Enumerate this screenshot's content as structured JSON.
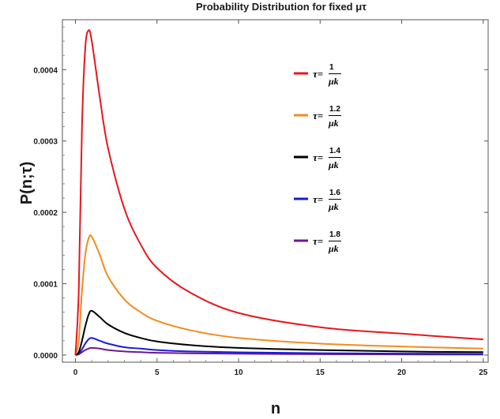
{
  "chart_data": {
    "type": "line",
    "title": "Probability Distribution for fixed μτ",
    "xlabel": "n",
    "ylabel": "P(n;τ)",
    "xlim": [
      -0.8,
      25.3
    ],
    "ylim": [
      -1e-05,
      0.00047
    ],
    "x_ticks": [
      0,
      5,
      10,
      15,
      20,
      25
    ],
    "x_tick_labels": [
      "0",
      "5",
      "10",
      "15",
      "20",
      "25"
    ],
    "y_ticks": [
      0,
      0.0001,
      0.0002,
      0.0003,
      0.0004
    ],
    "y_tick_labels": [
      "0.0000",
      "0.0001",
      "0.0002",
      "0.0003",
      "0.0004"
    ],
    "legend_position": "top-right",
    "series": [
      {
        "name": "τ=1/μk",
        "tau_label": "τ=",
        "numerator": "1",
        "denominator": "μk",
        "color": "#e8161d",
        "x": [
          0,
          0.2,
          0.4,
          0.6,
          0.8,
          1,
          1.5,
          2,
          3,
          4,
          5,
          7,
          10,
          15,
          20,
          25
        ],
        "y": [
          0,
          9e-05,
          0.00032,
          0.00043,
          0.000455,
          0.00044,
          0.00036,
          0.00029,
          0.000205,
          0.000155,
          0.000122,
          8.8e-05,
          5.9e-05,
          3.9e-05,
          3e-05,
          2.2e-05
        ]
      },
      {
        "name": "τ=1.2/μk",
        "tau_label": "τ=",
        "numerator": "1.2",
        "denominator": "μk",
        "color": "#f28c1f",
        "x": [
          0,
          0.2,
          0.4,
          0.6,
          0.8,
          1,
          1.5,
          2,
          3,
          4,
          5,
          7,
          10,
          15,
          20,
          25
        ],
        "y": [
          0,
          2e-05,
          9e-05,
          0.00014,
          0.000163,
          0.000166,
          0.00014,
          0.00011,
          7.8e-05,
          6e-05,
          4.8e-05,
          3.5e-05,
          2.4e-05,
          1.6e-05,
          1.2e-05,
          9e-06
        ]
      },
      {
        "name": "τ=1.4/μk",
        "tau_label": "τ=",
        "numerator": "1.4",
        "denominator": "μk",
        "color": "#000000",
        "x": [
          0,
          0.2,
          0.4,
          0.6,
          0.8,
          1,
          1.5,
          2,
          3,
          4,
          5,
          7,
          10,
          15,
          20,
          25
        ],
        "y": [
          0,
          4e-06,
          2e-05,
          4e-05,
          5.6e-05,
          6.2e-05,
          5.3e-05,
          4.3e-05,
          3.1e-05,
          2.4e-05,
          1.9e-05,
          1.4e-05,
          1e-05,
          7e-06,
          5e-06,
          4e-06
        ]
      },
      {
        "name": "τ=1.6/μk",
        "tau_label": "τ=",
        "numerator": "1.6",
        "denominator": "μk",
        "color": "#1a1adb",
        "x": [
          0,
          0.2,
          0.4,
          0.6,
          0.8,
          1,
          1.5,
          2,
          3,
          4,
          5,
          7,
          10,
          15,
          20,
          25
        ],
        "y": [
          0,
          2e-06,
          8e-06,
          1.6e-05,
          2.2e-05,
          2.4e-05,
          2e-05,
          1.6e-05,
          1.1e-05,
          9e-06,
          7e-06,
          5e-06,
          3.8e-06,
          2.6e-06,
          2e-06,
          1.5e-06
        ]
      },
      {
        "name": "τ=1.8/μk",
        "tau_label": "τ=",
        "numerator": "1.8",
        "denominator": "μk",
        "color": "#6b1a8c",
        "x": [
          0,
          0.2,
          0.4,
          0.6,
          0.8,
          1,
          1.5,
          2,
          3,
          4,
          5,
          7,
          10,
          15,
          20,
          25
        ],
        "y": [
          0,
          1e-06,
          4e-06,
          7e-06,
          9e-06,
          1e-05,
          9e-06,
          7e-06,
          5e-06,
          4e-06,
          3.2e-06,
          2.4e-06,
          1.8e-06,
          1.2e-06,
          9e-07,
          7e-07
        ]
      }
    ]
  }
}
